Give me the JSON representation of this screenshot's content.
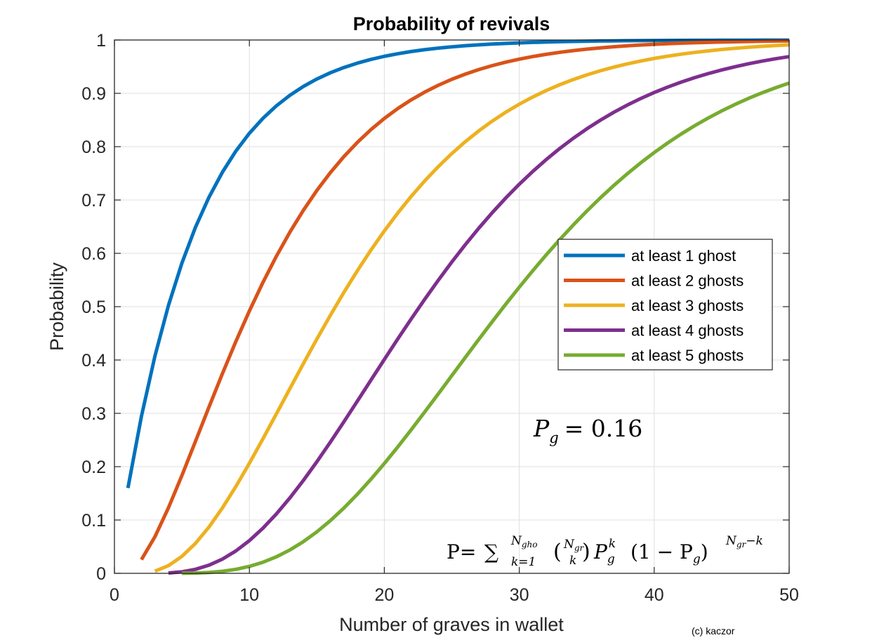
{
  "chart_data": {
    "type": "line",
    "title": "Probability of revivals",
    "xlabel": "Number of graves in wallet",
    "ylabel": "Probability",
    "xlim": [
      0,
      50
    ],
    "ylim": [
      0,
      1
    ],
    "xticks": [
      "0",
      "10",
      "20",
      "30",
      "40",
      "50"
    ],
    "yticks": [
      "0",
      "0.1",
      "0.2",
      "0.3",
      "0.4",
      "0.5",
      "0.6",
      "0.7",
      "0.8",
      "0.9",
      "1"
    ],
    "grid": true,
    "legend_position": "right",
    "p_ghost": 0.16,
    "series": [
      {
        "name": "at least 1 ghost",
        "min_ghosts": 1,
        "color": "#0072BD"
      },
      {
        "name": "at least 2 ghosts",
        "min_ghosts": 2,
        "color": "#D95319"
      },
      {
        "name": "at least 3 ghosts",
        "min_ghosts": 3,
        "color": "#EDB120"
      },
      {
        "name": "at least 4 ghosts",
        "min_ghosts": 4,
        "color": "#7E2F8E"
      },
      {
        "name": "at least 5 ghosts",
        "min_ghosts": 5,
        "color": "#77AC30"
      }
    ],
    "annotations": {
      "pg_lhs": "P",
      "pg_sub": "g",
      "pg_rhs": "= 0.16",
      "formula": {
        "lhs": "P=",
        "sum": "∑",
        "upper": "N",
        "upper_sub": "gho",
        "lower": "k=1",
        "binom_top": "N",
        "binom_top_sub": "gr",
        "binom_bottom": "k",
        "p": "P",
        "p_sub": "g",
        "p_sup": "k",
        "paren": "(1 − P",
        "paren_sub": "g",
        "close": ")",
        "exp": "N",
        "exp_sub": "gr",
        "exp_tail": "−k"
      }
    },
    "credit": "(c) kaczor"
  }
}
